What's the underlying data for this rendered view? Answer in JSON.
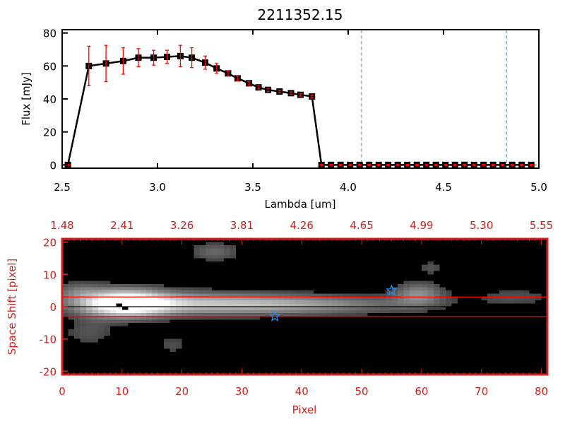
{
  "chart_data": [
    {
      "type": "line",
      "title": "2211352.15",
      "xlabel": "Lambda [um]",
      "ylabel": "Flux [mJy]",
      "xlim": [
        2.5,
        5.0
      ],
      "ylim": [
        -2,
        82
      ],
      "xticks": [
        "2.5",
        "3.0",
        "3.5",
        "4.0",
        "4.5",
        "5.0"
      ],
      "xtick_values": [
        2.5,
        3.0,
        3.5,
        4.0,
        4.5,
        5.0
      ],
      "yticks": [
        "0",
        "20",
        "40",
        "60",
        "80"
      ],
      "ytick_values": [
        0,
        20,
        40,
        60,
        80
      ],
      "x": [
        2.53,
        2.64,
        2.73,
        2.82,
        2.9,
        2.98,
        3.05,
        3.12,
        3.18,
        3.25,
        3.31,
        3.37,
        3.42,
        3.48,
        3.53,
        3.58,
        3.64,
        3.7,
        3.75,
        3.81,
        3.86,
        3.91,
        3.96,
        4.01,
        4.06,
        4.11,
        4.16,
        4.21,
        4.26,
        4.31,
        4.36,
        4.41,
        4.46,
        4.51,
        4.56,
        4.61,
        4.66,
        4.71,
        4.76,
        4.81,
        4.86,
        4.91,
        4.96
      ],
      "y": [
        0,
        60,
        61.5,
        63,
        65,
        65,
        65.5,
        66,
        65,
        62,
        58.5,
        55.5,
        52.5,
        49.5,
        47,
        45.5,
        44.5,
        43.5,
        42.5,
        41.5,
        0,
        0,
        0,
        0,
        0,
        0,
        0,
        0,
        0,
        0,
        0,
        0,
        0,
        0,
        0,
        0,
        0,
        0,
        0,
        0,
        0,
        0,
        0
      ],
      "yerr": [
        0,
        12,
        11,
        8,
        5.5,
        4.5,
        4,
        6.5,
        6,
        4,
        3,
        1.5,
        1.5,
        1,
        1,
        1,
        0.8,
        0.8,
        0.8,
        0.8,
        0,
        0,
        0,
        0,
        0,
        0,
        0,
        0,
        0,
        0,
        0,
        0,
        0,
        0,
        0,
        0,
        0,
        0,
        0,
        0,
        0,
        0,
        0
      ],
      "vlines": [
        {
          "x": 4.07,
          "color": "#888888"
        },
        {
          "x": 4.83,
          "color": "#1e90ff"
        }
      ],
      "colors": {
        "line": "#000000",
        "errorbar": "#ff0000"
      }
    },
    {
      "type": "heatmap",
      "xlabel": "Pixel",
      "ylabel": "Space Shift [pixel]",
      "xlim": [
        0,
        81
      ],
      "ylim": [
        -21,
        21
      ],
      "xticks": [
        "0",
        "10",
        "20",
        "30",
        "40",
        "50",
        "60",
        "70",
        "80"
      ],
      "xtick_values": [
        0,
        10,
        20,
        30,
        40,
        50,
        60,
        70,
        80
      ],
      "yticks": [
        "-20",
        "-10",
        "0",
        "10",
        "20"
      ],
      "ytick_values": [
        -20,
        -10,
        0,
        10,
        20
      ],
      "top_axis_labels": [
        "1.48",
        "2.41",
        "3.26",
        "3.81",
        "4.26",
        "4.65",
        "4.99",
        "5.30",
        "5.55"
      ],
      "hlines": [
        {
          "y": 3,
          "color": "#ff0000"
        },
        {
          "y": -3,
          "color": "#ff0000"
        },
        {
          "y": 0,
          "color": "#000000"
        }
      ],
      "stars": [
        {
          "x": 55,
          "y": 5
        },
        {
          "x": 35.5,
          "y": -3
        }
      ],
      "colors": {
        "axis": "#d42020",
        "star": "#1e90ff"
      }
    }
  ]
}
